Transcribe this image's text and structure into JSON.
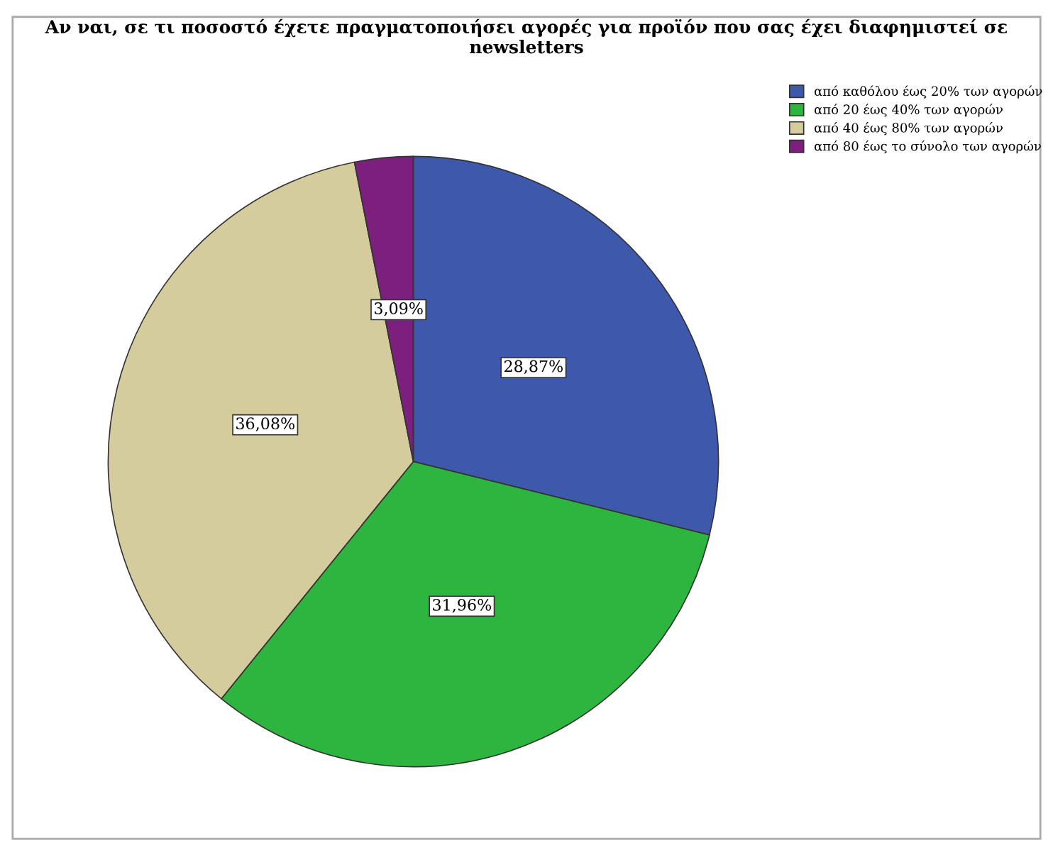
{
  "chart_data": {
    "type": "pie",
    "title": "Αν ναι, σε τι ποσοστό έχετε πραγματοποιήσει αγορές για προϊόν που σας έχει διαφημιστεί σε newsletters",
    "categories": [
      "από καθόλου έως 20% των αγορών",
      "από 20 έως 40% των αγορών",
      "από 40 έως 80% των αγορών",
      "από 80 έως το σύνολο των αγορών"
    ],
    "values": [
      28.87,
      31.96,
      36.08,
      3.09
    ],
    "colors": [
      "#3e58ac",
      "#2db540",
      "#d4cc9c",
      "#7d1f7d"
    ],
    "value_labels": [
      "28,87%",
      "31,96%",
      "36,08%",
      "3,09%"
    ],
    "legend": "top right"
  }
}
